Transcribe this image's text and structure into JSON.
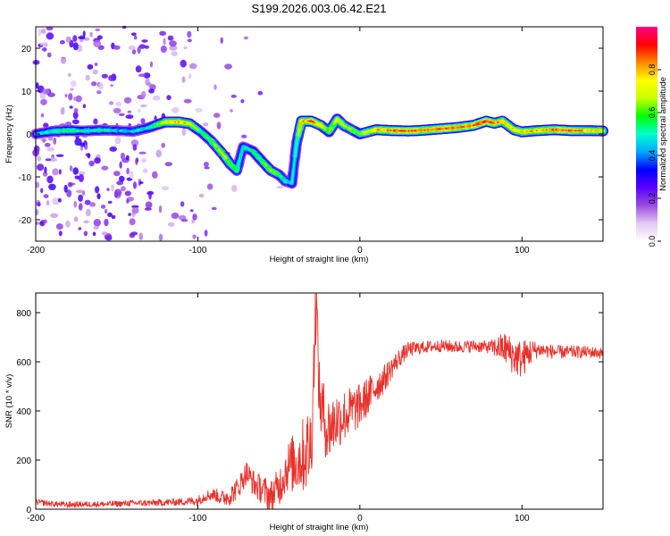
{
  "title": "S199.2026.003.06.42.E21",
  "chart_data": [
    {
      "type": "heatmap",
      "name": "spectrogram",
      "xlabel": "Height of straight line (km)",
      "ylabel": "Frequency (Hz)",
      "xlim": [
        -200,
        150
      ],
      "ylim": [
        -25,
        25
      ],
      "xticks": [
        -200,
        -100,
        0,
        100
      ],
      "yticks": [
        -20,
        -10,
        0,
        10,
        20
      ],
      "colorbar": {
        "label": "Normalized spectral amplitude",
        "range": [
          0.0,
          1.0
        ],
        "ticks": [
          0.0,
          0.2,
          0.4,
          0.6,
          0.8
        ],
        "colormap": [
          "#ffffff",
          "#e3c9f2",
          "#9a4de0",
          "#5a00ff",
          "#0000ff",
          "#00a8ff",
          "#00ffd0",
          "#00ff00",
          "#c8ff00",
          "#ffff00",
          "#ff8800",
          "#ff0000",
          "#ff0088"
        ]
      },
      "ridge": [
        [
          -200,
          0.0,
          0.45
        ],
        [
          -190,
          0.6,
          0.5
        ],
        [
          -180,
          0.8,
          0.55
        ],
        [
          -170,
          0.7,
          0.5
        ],
        [
          -160,
          0.9,
          0.5
        ],
        [
          -150,
          0.8,
          0.45
        ],
        [
          -140,
          0.6,
          0.45
        ],
        [
          -130,
          1.5,
          0.5
        ],
        [
          -125,
          2.2,
          0.6
        ],
        [
          -120,
          2.8,
          0.75
        ],
        [
          -112,
          2.8,
          0.8
        ],
        [
          -105,
          2.4,
          0.75
        ],
        [
          -98,
          0.5,
          0.55
        ],
        [
          -92,
          -1.5,
          0.6
        ],
        [
          -85,
          -4.5,
          0.7
        ],
        [
          -80,
          -7.0,
          0.65
        ],
        [
          -76,
          -8.5,
          0.6
        ],
        [
          -72,
          -3.0,
          0.45
        ],
        [
          -66,
          -4.0,
          0.55
        ],
        [
          -60,
          -6.5,
          0.6
        ],
        [
          -55,
          -8.5,
          0.65
        ],
        [
          -50,
          -9.5,
          0.6
        ],
        [
          -46,
          -11.0,
          0.5
        ],
        [
          -42,
          -11.5,
          0.45
        ],
        [
          -39,
          -2.0,
          0.5
        ],
        [
          -36,
          3.0,
          0.8
        ],
        [
          -30,
          3.0,
          0.85
        ],
        [
          -24,
          2.0,
          0.8
        ],
        [
          -19,
          0.5,
          0.6
        ],
        [
          -14,
          3.5,
          0.7
        ],
        [
          -10,
          2.0,
          0.7
        ],
        [
          -5,
          1.0,
          0.65
        ],
        [
          0,
          0.0,
          0.65
        ],
        [
          10,
          1.0,
          0.8
        ],
        [
          20,
          0.8,
          0.85
        ],
        [
          30,
          0.7,
          0.85
        ],
        [
          40,
          0.9,
          0.85
        ],
        [
          50,
          1.2,
          0.85
        ],
        [
          60,
          1.5,
          0.85
        ],
        [
          70,
          2.0,
          0.85
        ],
        [
          78,
          3.0,
          0.9
        ],
        [
          83,
          2.5,
          0.85
        ],
        [
          88,
          3.0,
          0.8
        ],
        [
          95,
          1.0,
          0.75
        ],
        [
          100,
          0.5,
          0.8
        ],
        [
          110,
          0.8,
          0.8
        ],
        [
          120,
          1.0,
          0.85
        ],
        [
          130,
          0.8,
          0.85
        ],
        [
          140,
          0.8,
          0.8
        ],
        [
          150,
          0.7,
          0.75
        ]
      ],
      "scatter_density": [
        [
          -200,
          0.65
        ],
        [
          -180,
          0.75
        ],
        [
          -160,
          0.75
        ],
        [
          -140,
          0.65
        ],
        [
          -120,
          0.4
        ],
        [
          -100,
          0.25
        ],
        [
          -90,
          0.15
        ],
        [
          -70,
          0.1
        ],
        [
          -50,
          0.03
        ],
        [
          -40,
          0.0
        ],
        [
          150,
          0.0
        ]
      ]
    },
    {
      "type": "line",
      "name": "snr",
      "xlabel": "Height of straight line (km)",
      "ylabel": "SNR (10 * v/v)",
      "xlim": [
        -200,
        150
      ],
      "ylim": [
        0,
        880
      ],
      "xticks": [
        -200,
        -100,
        0,
        100
      ],
      "yticks": [
        0,
        200,
        400,
        600,
        800
      ],
      "color": "#e8302a",
      "series": [
        {
          "name": "SNR",
          "x": [
            -200,
            -190,
            -180,
            -170,
            -160,
            -150,
            -140,
            -130,
            -120,
            -110,
            -100,
            -95,
            -90,
            -85,
            -80,
            -75,
            -70,
            -65,
            -60,
            -55,
            -50,
            -45,
            -40,
            -35,
            -30,
            -27,
            -25,
            -20,
            -15,
            -10,
            -5,
            0,
            5,
            10,
            15,
            20,
            25,
            30,
            40,
            50,
            60,
            70,
            80,
            90,
            95,
            100,
            105,
            110,
            120,
            130,
            140,
            150
          ],
          "values": [
            30,
            22,
            18,
            20,
            20,
            22,
            25,
            25,
            28,
            30,
            35,
            55,
            60,
            45,
            55,
            90,
            150,
            100,
            80,
            50,
            90,
            170,
            190,
            220,
            260,
            880,
            450,
            320,
            360,
            380,
            400,
            420,
            460,
            500,
            530,
            580,
            620,
            650,
            660,
            665,
            660,
            665,
            660,
            655,
            620,
            610,
            640,
            650,
            640,
            640,
            640,
            635
          ]
        }
      ],
      "noise": [
        [
          -200,
          12
        ],
        [
          -150,
          12
        ],
        [
          -110,
          15
        ],
        [
          -100,
          20
        ],
        [
          -90,
          25
        ],
        [
          -80,
          40
        ],
        [
          -70,
          50
        ],
        [
          -60,
          60
        ],
        [
          -50,
          80
        ],
        [
          -45,
          100
        ],
        [
          -40,
          130
        ],
        [
          -30,
          180
        ],
        [
          -25,
          150
        ],
        [
          -20,
          140
        ],
        [
          -10,
          110
        ],
        [
          0,
          90
        ],
        [
          10,
          70
        ],
        [
          20,
          45
        ],
        [
          30,
          30
        ],
        [
          40,
          25
        ],
        [
          80,
          25
        ],
        [
          90,
          70
        ],
        [
          100,
          80
        ],
        [
          110,
          30
        ],
        [
          150,
          22
        ]
      ]
    }
  ]
}
